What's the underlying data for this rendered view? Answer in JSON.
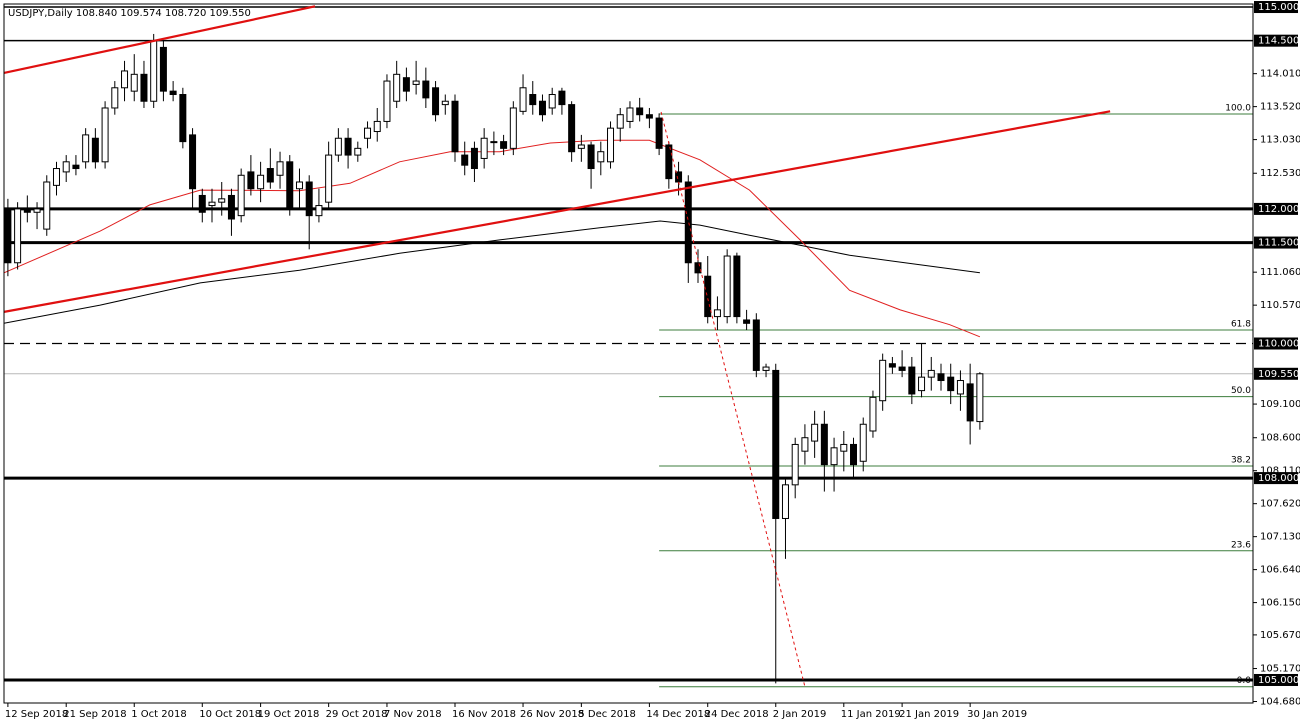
{
  "chart_data": {
    "type": "candlestick",
    "title": "USDJPY,Daily  108.840 109.574 108.720 109.550",
    "categories": [
      "12 Sep 2018",
      null,
      null,
      null,
      null,
      null,
      "21 Sep 2018",
      null,
      null,
      null,
      null,
      null,
      null,
      "1 Oct 2018",
      null,
      null,
      null,
      null,
      null,
      null,
      "10 Oct 2018",
      null,
      null,
      null,
      null,
      null,
      "19 Oct 2018",
      null,
      null,
      null,
      null,
      null,
      null,
      "29 Oct 2018",
      null,
      null,
      null,
      null,
      null,
      "7 Nov 2018",
      null,
      null,
      null,
      null,
      null,
      null,
      "16 Nov 2018",
      null,
      null,
      null,
      null,
      null,
      null,
      "26 Nov 2018",
      null,
      null,
      null,
      null,
      null,
      "5 Dec 2018",
      null,
      null,
      null,
      null,
      null,
      null,
      "14 Dec 2018",
      null,
      null,
      null,
      null,
      null,
      "24 Dec 2018",
      null,
      null,
      null,
      null,
      null,
      null,
      "2 Jan 2019",
      null,
      null,
      null,
      null,
      null,
      null,
      "11 Jan 2019",
      null,
      null,
      null,
      null,
      null,
      "21 Jan 2019",
      null,
      null,
      null,
      null,
      null,
      null,
      "30 Jan 2019",
      null
    ],
    "ohlc": [
      [
        112.0,
        112.15,
        111.0,
        111.2
      ],
      [
        111.2,
        112.1,
        111.1,
        112.0
      ],
      [
        112.0,
        112.2,
        111.8,
        111.95
      ],
      [
        111.95,
        112.1,
        111.7,
        112.0
      ],
      [
        111.7,
        112.5,
        111.6,
        112.4
      ],
      [
        112.35,
        112.7,
        112.2,
        112.6
      ],
      [
        112.55,
        112.8,
        112.4,
        112.7
      ],
      [
        112.65,
        112.8,
        112.5,
        112.6
      ],
      [
        112.7,
        113.2,
        112.6,
        113.1
      ],
      [
        113.05,
        113.2,
        112.6,
        112.7
      ],
      [
        112.7,
        113.6,
        112.6,
        113.5
      ],
      [
        113.5,
        113.9,
        113.4,
        113.8
      ],
      [
        113.8,
        114.2,
        113.6,
        114.05
      ],
      [
        113.75,
        114.3,
        113.6,
        114.0
      ],
      [
        114.0,
        114.2,
        113.5,
        113.6
      ],
      [
        113.6,
        114.6,
        113.5,
        114.5
      ],
      [
        114.4,
        114.5,
        113.6,
        113.75
      ],
      [
        113.75,
        113.9,
        113.6,
        113.7
      ],
      [
        113.7,
        113.8,
        112.9,
        113.0
      ],
      [
        113.1,
        113.2,
        112.0,
        112.3
      ],
      [
        112.2,
        112.3,
        111.8,
        111.95
      ],
      [
        112.05,
        112.3,
        111.8,
        112.1
      ],
      [
        112.1,
        112.4,
        111.9,
        112.15
      ],
      [
        112.2,
        112.3,
        111.6,
        111.85
      ],
      [
        111.9,
        112.6,
        111.8,
        112.5
      ],
      [
        112.55,
        112.8,
        112.2,
        112.3
      ],
      [
        112.3,
        112.7,
        112.1,
        112.5
      ],
      [
        112.6,
        112.9,
        112.3,
        112.4
      ],
      [
        112.5,
        112.85,
        112.3,
        112.7
      ],
      [
        112.7,
        112.8,
        111.9,
        112.0
      ],
      [
        112.3,
        112.6,
        112.0,
        112.4
      ],
      [
        112.4,
        112.5,
        111.4,
        111.9
      ],
      [
        111.9,
        112.3,
        111.8,
        112.05
      ],
      [
        112.1,
        113.0,
        112.0,
        112.8
      ],
      [
        112.8,
        113.2,
        112.7,
        113.05
      ],
      [
        113.05,
        113.2,
        112.6,
        112.8
      ],
      [
        112.8,
        113.0,
        112.7,
        112.9
      ],
      [
        113.05,
        113.3,
        112.9,
        113.2
      ],
      [
        113.15,
        113.5,
        113.0,
        113.3
      ],
      [
        113.3,
        114.0,
        113.2,
        113.9
      ],
      [
        113.6,
        114.2,
        113.5,
        114.0
      ],
      [
        113.95,
        114.1,
        113.6,
        113.75
      ],
      [
        113.85,
        114.2,
        113.7,
        113.9
      ],
      [
        113.9,
        114.1,
        113.5,
        113.65
      ],
      [
        113.8,
        113.9,
        113.3,
        113.4
      ],
      [
        113.55,
        113.7,
        113.4,
        113.6
      ],
      [
        113.6,
        113.7,
        112.7,
        112.85
      ],
      [
        112.8,
        113.0,
        112.5,
        112.65
      ],
      [
        112.9,
        113.0,
        112.4,
        112.6
      ],
      [
        112.75,
        113.2,
        112.6,
        113.05
      ],
      [
        113.0,
        113.15,
        112.8,
        113.0
      ],
      [
        113.0,
        113.1,
        112.8,
        112.9
      ],
      [
        112.9,
        113.6,
        112.8,
        113.5
      ],
      [
        113.45,
        114.0,
        113.4,
        113.8
      ],
      [
        113.7,
        113.9,
        113.4,
        113.55
      ],
      [
        113.6,
        113.7,
        113.3,
        113.4
      ],
      [
        113.5,
        113.8,
        113.4,
        113.7
      ],
      [
        113.75,
        113.8,
        113.4,
        113.55
      ],
      [
        113.55,
        113.6,
        112.7,
        112.85
      ],
      [
        112.9,
        113.1,
        112.7,
        112.95
      ],
      [
        112.95,
        113.0,
        112.3,
        112.6
      ],
      [
        112.7,
        113.0,
        112.5,
        112.85
      ],
      [
        112.7,
        113.3,
        112.6,
        113.2
      ],
      [
        113.2,
        113.5,
        113.0,
        113.4
      ],
      [
        113.3,
        113.6,
        113.2,
        113.5
      ],
      [
        113.5,
        113.65,
        113.3,
        113.4
      ],
      [
        113.4,
        113.5,
        113.2,
        113.35
      ],
      [
        113.35,
        113.42,
        112.8,
        112.9
      ],
      [
        112.95,
        113.0,
        112.3,
        112.45
      ],
      [
        112.55,
        112.7,
        112.2,
        112.4
      ],
      [
        112.4,
        112.5,
        110.9,
        111.2
      ],
      [
        111.2,
        111.4,
        110.9,
        111.05
      ],
      [
        111.0,
        111.3,
        110.3,
        110.4
      ],
      [
        110.4,
        110.7,
        110.2,
        110.5
      ],
      [
        110.4,
        111.4,
        110.3,
        111.3
      ],
      [
        111.3,
        111.35,
        110.3,
        110.4
      ],
      [
        110.35,
        110.5,
        110.2,
        110.3
      ],
      [
        110.35,
        110.45,
        109.5,
        109.6
      ],
      [
        109.6,
        109.7,
        109.5,
        109.65
      ],
      [
        109.6,
        109.7,
        104.95,
        107.4
      ],
      [
        107.4,
        108.0,
        106.8,
        107.9
      ],
      [
        107.9,
        108.6,
        107.7,
        108.5
      ],
      [
        108.4,
        108.8,
        108.2,
        108.6
      ],
      [
        108.55,
        109.0,
        108.3,
        108.8
      ],
      [
        108.8,
        109.0,
        107.8,
        108.2
      ],
      [
        108.2,
        108.6,
        107.8,
        108.45
      ],
      [
        108.4,
        108.7,
        108.1,
        108.5
      ],
      [
        108.5,
        108.6,
        108.0,
        108.2
      ],
      [
        108.25,
        108.9,
        108.1,
        108.8
      ],
      [
        108.7,
        109.3,
        108.6,
        109.2
      ],
      [
        109.15,
        109.85,
        109.0,
        109.75
      ],
      [
        109.7,
        109.8,
        109.55,
        109.65
      ],
      [
        109.65,
        109.9,
        109.5,
        109.6
      ],
      [
        109.65,
        109.8,
        109.1,
        109.25
      ],
      [
        109.3,
        110.0,
        109.2,
        109.5
      ],
      [
        109.5,
        109.8,
        109.3,
        109.6
      ],
      [
        109.55,
        109.7,
        109.3,
        109.45
      ],
      [
        109.5,
        109.7,
        109.1,
        109.3
      ],
      [
        109.25,
        109.6,
        109.0,
        109.45
      ],
      [
        109.4,
        109.7,
        108.5,
        108.85
      ],
      [
        108.84,
        109.574,
        108.72,
        109.55
      ]
    ],
    "up_color": "#ffffff",
    "down_color": "#000000",
    "xlim": [
      -0.4,
      128.1
    ],
    "ylim": [
      104.658,
      115.045
    ],
    "yticks": [
      {
        "value": 114.01,
        "label": "114.010"
      },
      {
        "value": 113.52,
        "label": "113.520"
      },
      {
        "value": 113.03,
        "label": "113.030"
      },
      {
        "value": 112.53,
        "label": "112.530"
      },
      {
        "value": 111.06,
        "label": "111.060"
      },
      {
        "value": 110.57,
        "label": "110.570"
      },
      {
        "value": 109.1,
        "label": "109.100"
      },
      {
        "value": 108.6,
        "label": "108.600"
      },
      {
        "value": 108.11,
        "label": "108.110"
      },
      {
        "value": 107.62,
        "label": "107.620"
      },
      {
        "value": 107.13,
        "label": "107.130"
      },
      {
        "value": 106.64,
        "label": "106.640"
      },
      {
        "value": 106.15,
        "label": "106.150"
      },
      {
        "value": 105.67,
        "label": "105.670"
      },
      {
        "value": 105.17,
        "label": "105.170"
      },
      {
        "value": 104.68,
        "label": "104.680"
      }
    ],
    "levels": [
      {
        "value": 115,
        "label": "115.000",
        "style": "solid"
      },
      {
        "value": 114.5,
        "label": "114.500",
        "style": "solid"
      },
      {
        "value": 112,
        "label": "112.000",
        "style": "thick"
      },
      {
        "value": 111.5,
        "label": "111.500",
        "style": "thick"
      },
      {
        "value": 110,
        "label": "110.000",
        "style": "dashed"
      },
      {
        "value": 109.55,
        "label": "109.550",
        "style": "price"
      },
      {
        "value": 108,
        "label": "108.000",
        "style": "thick"
      },
      {
        "value": 105,
        "label": "105.000",
        "style": "thick"
      }
    ],
    "fibonacci": {
      "start": 67,
      "color": "#3c7d3c",
      "levels": [
        {
          "value": 113.41,
          "label": "100.0"
        },
        {
          "value": 110.2,
          "label": "61.8"
        },
        {
          "value": 109.21,
          "label": "50.0"
        },
        {
          "value": 108.18,
          "label": "38.2"
        },
        {
          "value": 106.92,
          "label": "23.6"
        },
        {
          "value": 104.9,
          "label": "0.0"
        }
      ]
    },
    "moving_averages": [
      {
        "color": "#e02020",
        "x": [
          -0.4,
          9.5,
          14.6,
          19.8,
          30,
          35.2,
          40.3,
          45.5,
          50.6,
          55.8,
          60.9,
          66,
          71.2,
          76.3,
          81.5,
          86.6,
          91.8,
          96.9,
          100
        ],
        "values": [
          111.05,
          111.67,
          112.06,
          112.28,
          112.27,
          112.38,
          112.7,
          112.85,
          112.85,
          112.98,
          113.02,
          113.02,
          112.73,
          112.28,
          111.54,
          110.79,
          110.5,
          110.28,
          110.1
        ]
      },
      {
        "color": "#000000",
        "x": [
          -0.4,
          9.5,
          19.8,
          30,
          40.3,
          50.6,
          60.9,
          67.1,
          71.2,
          76.3,
          81.5,
          86.6,
          91.8,
          100
        ],
        "values": [
          110.3,
          110.57,
          110.9,
          111.09,
          111.34,
          111.54,
          111.72,
          111.82,
          111.76,
          111.61,
          111.46,
          111.31,
          111.21,
          111.05
        ]
      }
    ],
    "trendlines": [
      {
        "color": "#e01010",
        "style": "solid",
        "from": [
          -0.4,
          114.02
        ],
        "to": [
          31.6,
          115.01
        ]
      },
      {
        "color": "#e01010",
        "style": "solid",
        "from": [
          -0.4,
          110.47
        ],
        "to": [
          113.4,
          113.45
        ]
      },
      {
        "color": "#e01010",
        "style": "dotted",
        "from": [
          67.2,
          113.44
        ],
        "to": [
          82,
          104.9
        ]
      }
    ]
  }
}
